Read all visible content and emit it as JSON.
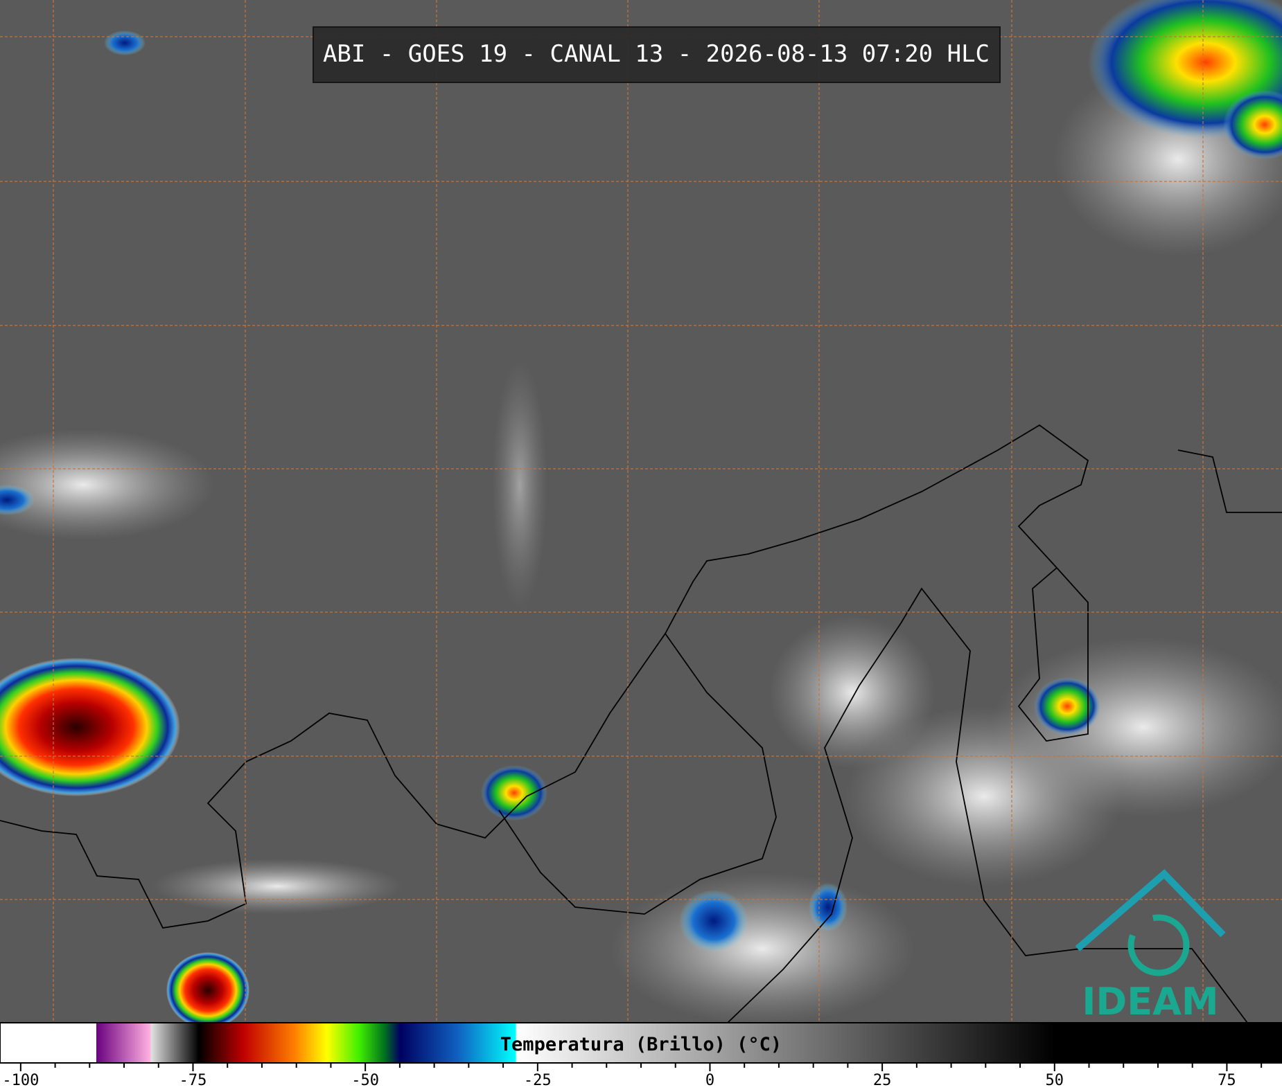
{
  "title": "ABI - GOES 19 - CANAL 13 - 2026-08-13 07:20 HLC",
  "colorbar": {
    "label": "Temperatura (Brillo) (°C)",
    "range": [
      -103,
      83
    ],
    "ticks": [
      -100,
      -75,
      -50,
      -25,
      0,
      25,
      50,
      75
    ],
    "minor_ticks": [
      -95,
      -90,
      -85,
      -80,
      -70,
      -65,
      -60,
      -55,
      -45,
      -40,
      -35,
      -30,
      -20,
      -15,
      -10,
      -5,
      5,
      10,
      15,
      20,
      30,
      35,
      40,
      45,
      55,
      60,
      65,
      70,
      80
    ]
  },
  "logo": "IDEAM"
}
